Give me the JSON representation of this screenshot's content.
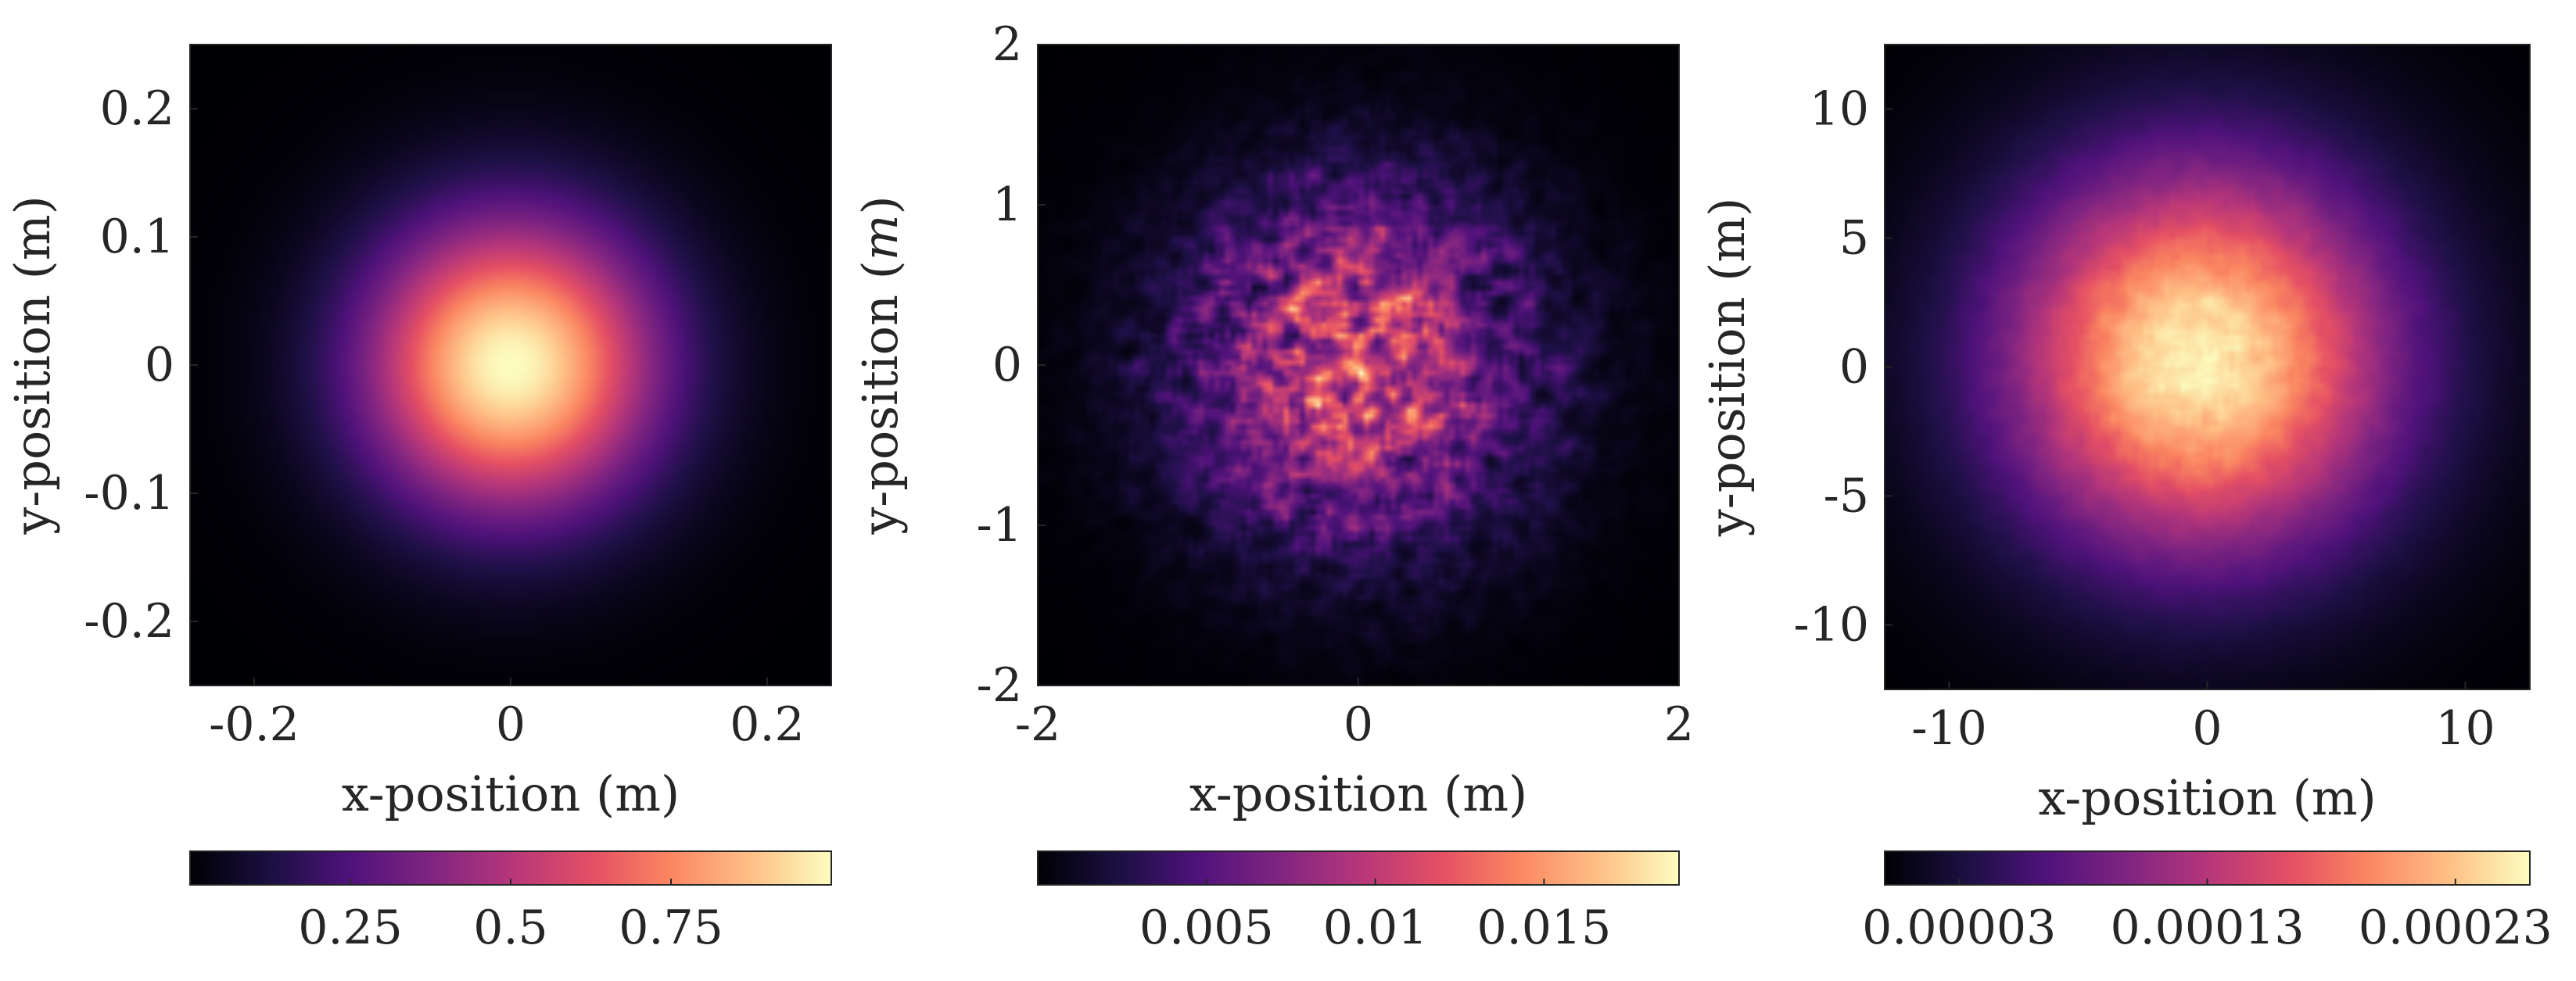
{
  "chart_data": [
    {
      "type": "heatmap",
      "title": "",
      "xlabel": "x-position (m)",
      "ylabel": "y-position (m)",
      "xlim": [
        -0.25,
        0.25
      ],
      "ylim": [
        -0.25,
        0.25
      ],
      "xticks": [
        -0.2,
        0,
        0.2
      ],
      "xtick_labels": [
        "-0.2",
        "0",
        "0.2"
      ],
      "yticks": [
        0.2,
        0.1,
        0,
        -0.1,
        -0.2
      ],
      "ytick_labels": [
        "0.2",
        "0.1",
        "0",
        "-0.1",
        "-0.2"
      ],
      "colormap": "magma",
      "pattern": "smooth-gaussian",
      "beam_sigma": 0.08,
      "peak_center": [
        0,
        0
      ],
      "colorbar": {
        "orientation": "horizontal",
        "range": [
          0,
          1
        ],
        "ticks": [
          0.25,
          0.5,
          0.75
        ],
        "tick_labels": [
          "0.25",
          "0.5",
          "0.75"
        ]
      }
    },
    {
      "type": "heatmap",
      "title": "",
      "xlabel": "x-position (m)",
      "ylabel": "y-position (m)",
      "ylabel_unit_italic": true,
      "xlim": [
        -2,
        2
      ],
      "ylim": [
        -2,
        2
      ],
      "xticks": [
        -2,
        0,
        2
      ],
      "xtick_labels": [
        "-2",
        "0",
        "2"
      ],
      "yticks": [
        2,
        1,
        0,
        -1,
        -2
      ],
      "ytick_labels": [
        "2",
        "1",
        "0",
        "-1",
        "-2"
      ],
      "colormap": "magma",
      "pattern": "speckle",
      "beam_sigma": 0.75,
      "peak_center": [
        0,
        0
      ],
      "colorbar": {
        "orientation": "horizontal",
        "range": [
          0,
          0.019
        ],
        "ticks": [
          0.005,
          0.01,
          0.015
        ],
        "tick_labels": [
          "0.005",
          "0.01",
          "0.015"
        ]
      }
    },
    {
      "type": "heatmap",
      "title": "",
      "xlabel": "x-position (m)",
      "ylabel": "y-position (m)",
      "xlim": [
        -12.5,
        12.5
      ],
      "ylim": [
        -12.5,
        12.5
      ],
      "xticks": [
        -10,
        0,
        10
      ],
      "xtick_labels": [
        "-10",
        "0",
        "10"
      ],
      "yticks": [
        10,
        5,
        0,
        -5,
        -10
      ],
      "ytick_labels": [
        "10",
        "5",
        "0",
        "-5",
        "-10"
      ],
      "colormap": "magma",
      "pattern": "grainy-gaussian",
      "beam_sigma": 5.3,
      "peak_center": [
        -0.3,
        0.3
      ],
      "colorbar": {
        "orientation": "horizontal",
        "range": [
          0,
          0.00026
        ],
        "ticks": [
          3e-05,
          0.00013,
          0.00023
        ],
        "tick_labels": [
          "0.00003",
          "0.00013",
          "0.00023"
        ]
      }
    }
  ]
}
